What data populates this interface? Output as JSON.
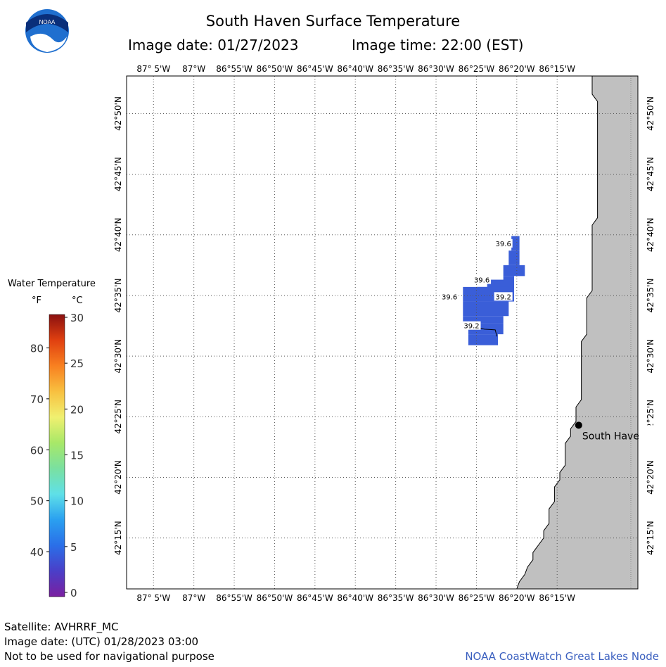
{
  "header": {
    "title": "South Haven Surface Temperature",
    "image_date": "Image date: 01/27/2023",
    "image_time": "Image time: 22:00 (EST)",
    "logo_text": "NOAA"
  },
  "map": {
    "lon_labels": [
      "87° 5'W",
      "87°W",
      "86°55'W",
      "86°50'W",
      "86°45'W",
      "86°40'W",
      "86°35'W",
      "86°30'W",
      "86°25'W",
      "86°20'W",
      "86°15'W"
    ],
    "lat_labels": [
      "42°50'N",
      "42°45'N",
      "42°40'N",
      "42°35'N",
      "42°30'N",
      "42°25'N",
      "42°20'N",
      "42°15'N"
    ],
    "land_color": "#c0c0c0",
    "water_color": "#3a5ed8",
    "grid": "dotted",
    "city": "South Haven",
    "temp_labels": [
      {
        "text": "39.6",
        "lon": -86.425,
        "lat": 42.655
      },
      {
        "text": "39.6",
        "lon": -86.465,
        "lat": 42.605
      },
      {
        "text": "39.6",
        "lon": -86.525,
        "lat": 42.582
      },
      {
        "text": "39.2",
        "lon": -86.425,
        "lat": 42.582
      },
      {
        "text": "39.2",
        "lon": -86.484,
        "lat": 42.542
      }
    ]
  },
  "legend": {
    "title": "Water Temperature",
    "unit_f": "°F",
    "unit_c": "°C",
    "f_ticks": [
      "80",
      "70",
      "60",
      "50",
      "40"
    ],
    "c_ticks": [
      "30",
      "25",
      "20",
      "15",
      "10",
      "5",
      "0"
    ],
    "colors": [
      "#7a1fa0",
      "#4a3fc8",
      "#2a6fe8",
      "#2aa0f0",
      "#5fe0e8",
      "#7ae0a0",
      "#a8e868",
      "#f0f070",
      "#f8c040",
      "#f88020",
      "#e04010",
      "#8a1010"
    ]
  },
  "footer": {
    "satellite": "Satellite: AVHRRF_MC",
    "utc_date": "Image date: (UTC) 01/28/2023  03:00",
    "disclaimer": "Not to be used for navigational purpose",
    "credit": "NOAA CoastWatch Great Lakes Node"
  }
}
